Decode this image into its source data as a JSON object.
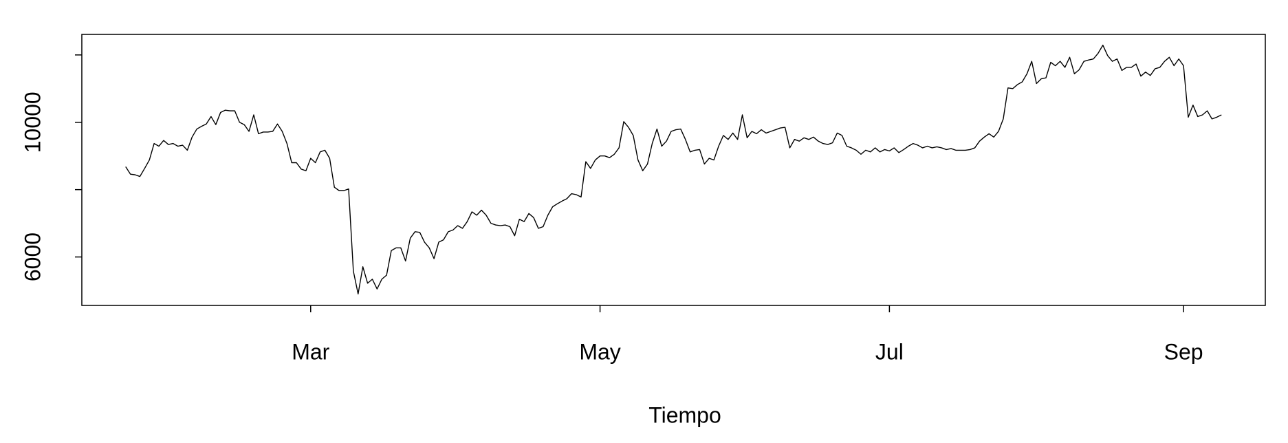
{
  "chart_data": {
    "type": "line",
    "x_label": "Tiempo",
    "categories": [
      null,
      null,
      null,
      null,
      null,
      null,
      null,
      null,
      null,
      null,
      null,
      null,
      null,
      null,
      null,
      null,
      null,
      null,
      null,
      null,
      null,
      null,
      null,
      null,
      null,
      null,
      null,
      null,
      null,
      null,
      null,
      null,
      null,
      null,
      null,
      null,
      null,
      null,
      null,
      "Mar",
      null,
      null,
      null,
      null,
      null,
      null,
      null,
      null,
      null,
      null,
      null,
      null,
      null,
      null,
      null,
      null,
      null,
      null,
      null,
      null,
      null,
      null,
      null,
      null,
      null,
      null,
      null,
      null,
      null,
      null,
      null,
      null,
      null,
      null,
      null,
      null,
      null,
      null,
      null,
      null,
      null,
      null,
      null,
      null,
      null,
      null,
      null,
      null,
      null,
      null,
      null,
      null,
      null,
      null,
      null,
      null,
      null,
      null,
      null,
      null,
      "May",
      null,
      null,
      null,
      null,
      null,
      null,
      null,
      null,
      null,
      null,
      null,
      null,
      null,
      null,
      null,
      null,
      null,
      null,
      null,
      null,
      null,
      null,
      null,
      null,
      null,
      null,
      null,
      null,
      null,
      null,
      null,
      null,
      null,
      null,
      null,
      null,
      null,
      null,
      null,
      null,
      null,
      null,
      null,
      null,
      null,
      null,
      null,
      null,
      null,
      null,
      null,
      null,
      null,
      null,
      null,
      null,
      null,
      null,
      null,
      null,
      "Jul",
      null,
      null,
      null,
      null,
      null,
      null,
      null,
      null,
      null,
      null,
      null,
      null,
      null,
      null,
      null,
      null,
      null,
      null,
      null,
      null,
      null,
      null,
      null,
      null,
      null,
      null,
      null,
      null,
      null,
      null,
      null,
      null,
      null,
      null,
      null,
      null,
      null,
      null,
      null,
      null,
      null,
      null,
      null,
      null,
      null,
      null,
      null,
      null,
      null,
      null,
      null,
      null,
      null,
      null,
      null,
      null,
      null,
      null,
      null,
      null,
      null,
      "Sep",
      null,
      null,
      null,
      null,
      null,
      null,
      null,
      null
    ],
    "values": [
      8680,
      8460,
      8440,
      8390,
      8630,
      8880,
      9370,
      9290,
      9460,
      9340,
      9370,
      9290,
      9320,
      9170,
      9560,
      9800,
      9880,
      9950,
      10170,
      9930,
      10290,
      10360,
      10340,
      10340,
      10000,
      9930,
      9730,
      10220,
      9660,
      9710,
      9710,
      9730,
      9950,
      9730,
      9370,
      8800,
      8800,
      8610,
      8560,
      8930,
      8800,
      9120,
      9170,
      8930,
      8070,
      7970,
      7970,
      8020,
      5580,
      4900,
      5710,
      5220,
      5340,
      5050,
      5340,
      5460,
      6190,
      6270,
      6270,
      5880,
      6560,
      6750,
      6730,
      6440,
      6270,
      5950,
      6440,
      6510,
      6750,
      6800,
      6930,
      6850,
      7050,
      7340,
      7240,
      7390,
      7240,
      7000,
      6950,
      6930,
      6950,
      6900,
      6630,
      7120,
      7050,
      7290,
      7170,
      6850,
      6900,
      7240,
      7490,
      7580,
      7660,
      7730,
      7880,
      7850,
      7780,
      8830,
      8630,
      8880,
      9000,
      9000,
      8950,
      9050,
      9240,
      10020,
      9850,
      9610,
      8880,
      8560,
      8760,
      9370,
      9800,
      9290,
      9440,
      9730,
      9780,
      9800,
      9490,
      9120,
      9170,
      9190,
      8760,
      8930,
      8880,
      9290,
      9610,
      9490,
      9680,
      9490,
      10220,
      9540,
      9730,
      9660,
      9780,
      9680,
      9730,
      9780,
      9830,
      9850,
      9240,
      9490,
      9440,
      9540,
      9490,
      9560,
      9440,
      9370,
      9340,
      9390,
      9680,
      9610,
      9290,
      9240,
      9170,
      9050,
      9170,
      9120,
      9240,
      9120,
      9190,
      9150,
      9240,
      9100,
      9190,
      9290,
      9370,
      9320,
      9240,
      9290,
      9240,
      9270,
      9240,
      9190,
      9220,
      9170,
      9170,
      9170,
      9190,
      9240,
      9440,
      9560,
      9660,
      9560,
      9730,
      10100,
      11020,
      11000,
      11120,
      11200,
      11440,
      11810,
      11150,
      11290,
      11320,
      11780,
      11680,
      11810,
      11630,
      11930,
      11440,
      11560,
      11810,
      11850,
      11880,
      12050,
      12290,
      11980,
      11810,
      11880,
      11540,
      11630,
      11630,
      11730,
      11370,
      11490,
      11390,
      11590,
      11630,
      11810,
      11930,
      11680,
      11880,
      11680,
      10150,
      10510,
      10170,
      10220,
      10340,
      10100,
      10150,
      10220
    ],
    "color": "#000000",
    "ylim": [
      4561,
      12610
    ],
    "yticks": [
      6000,
      {
        "value": 8000,
        "label": null
      },
      10000,
      {
        "value": 12000,
        "label": null
      }
    ]
  }
}
